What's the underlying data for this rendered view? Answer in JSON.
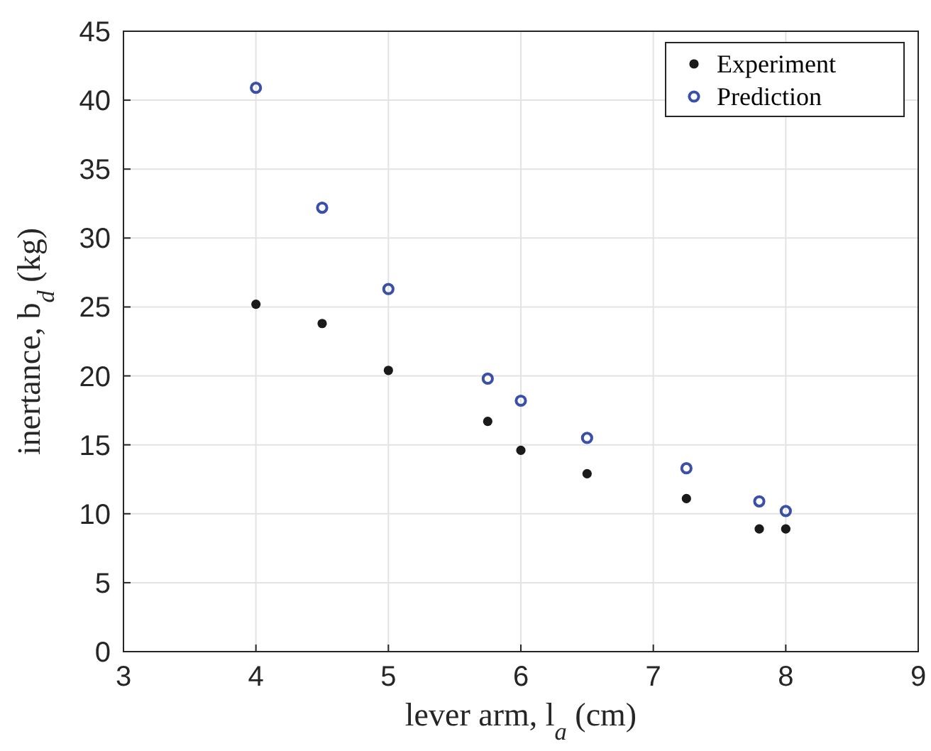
{
  "chart_data": {
    "type": "scatter",
    "xlabel": "lever arm, l$_{a}$ (cm)",
    "ylabel": "inertance, b$_{d}$ (kg)",
    "xlim": [
      3,
      9
    ],
    "xticks": [
      3,
      4,
      5,
      6,
      7,
      8,
      9
    ],
    "ylim": [
      0,
      45
    ],
    "yticks": [
      0,
      5,
      10,
      15,
      20,
      25,
      30,
      35,
      40,
      45
    ],
    "grid": true,
    "legend": "top right",
    "series": [
      {
        "name": "Experiment",
        "color": "#1a1a1a",
        "marker": "circle",
        "x": [
          4,
          4.5,
          5,
          5.75,
          6,
          6.5,
          7.25,
          7.8,
          8
        ],
        "values": [
          25.2,
          23.8,
          20.4,
          16.7,
          14.6,
          12.9,
          11.1,
          8.9,
          8.9
        ]
      },
      {
        "name": "Prediction",
        "color": "#3a4fa8",
        "marker": "circle",
        "x": [
          4,
          4.5,
          5,
          5.75,
          6,
          6.5,
          7.25,
          7.8,
          8
        ],
        "values": [
          40.9,
          32.2,
          26.3,
          19.8,
          18.2,
          15.5,
          13.3,
          10.9,
          10.2
        ]
      }
    ]
  }
}
